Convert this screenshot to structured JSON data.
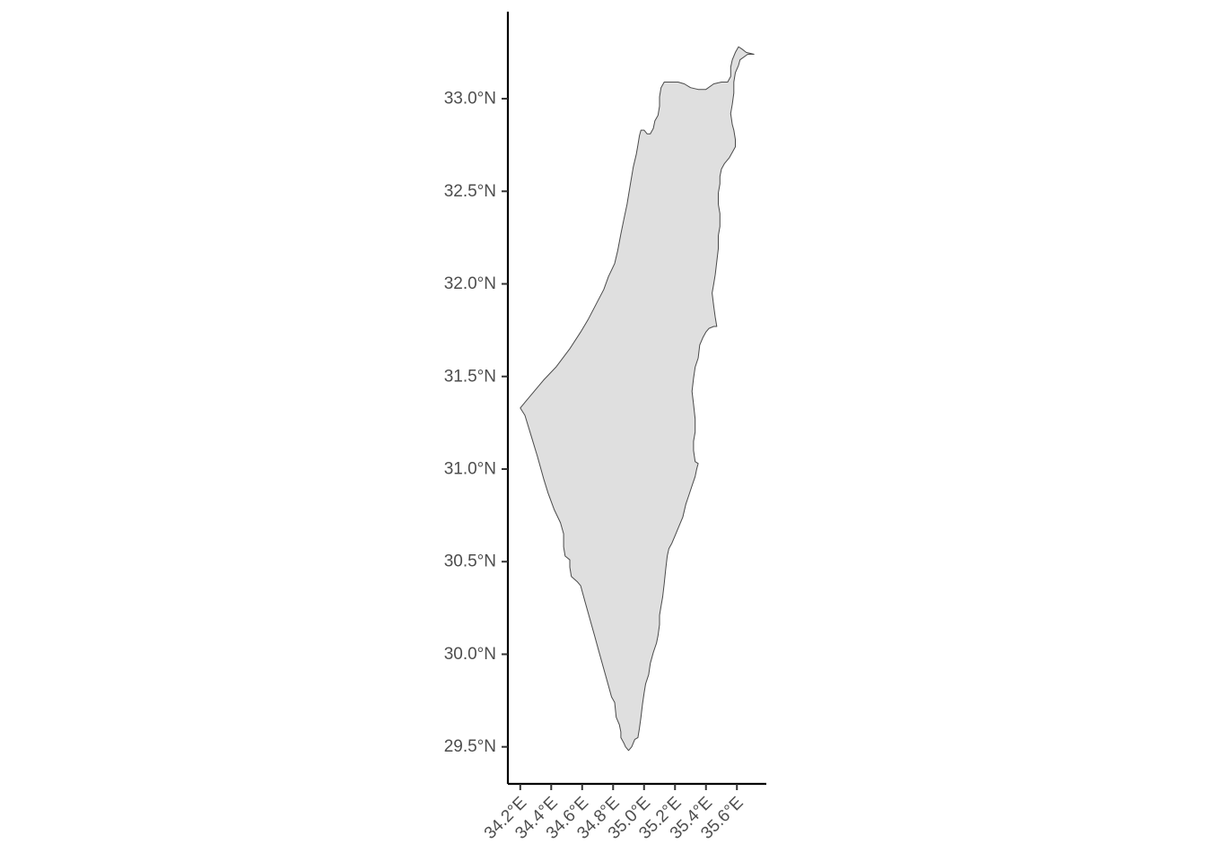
{
  "chart_data": {
    "type": "map",
    "projection": "geographic",
    "region_fill": "#dfdfdf",
    "region_stroke": "#4a4a4a",
    "axis_color": "#000000",
    "tick_label_color": "#4d4d4d",
    "xlim": [
      34.12,
      35.79
    ],
    "ylim": [
      29.3,
      33.47
    ],
    "x_ticks": [
      {
        "value": 34.2,
        "label": "34.2°E"
      },
      {
        "value": 34.4,
        "label": "34.4°E"
      },
      {
        "value": 34.6,
        "label": "34.6°E"
      },
      {
        "value": 34.8,
        "label": "34.8°E"
      },
      {
        "value": 35.0,
        "label": "35.0°E"
      },
      {
        "value": 35.2,
        "label": "35.2°E"
      },
      {
        "value": 35.4,
        "label": "35.4°E"
      },
      {
        "value": 35.6,
        "label": "35.6°E"
      }
    ],
    "y_ticks": [
      {
        "value": 33.0,
        "label": "33.0°N"
      },
      {
        "value": 32.5,
        "label": "32.5°N"
      },
      {
        "value": 32.0,
        "label": "32.0°N"
      },
      {
        "value": 31.5,
        "label": "31.5°N"
      },
      {
        "value": 31.0,
        "label": "31.0°N"
      },
      {
        "value": 30.5,
        "label": "30.5°N"
      },
      {
        "value": 30.0,
        "label": "30.0°N"
      },
      {
        "value": 29.5,
        "label": "29.5°N"
      }
    ],
    "grid": false,
    "outline_lonlat": [
      [
        34.2,
        31.33
      ],
      [
        34.23,
        31.29
      ],
      [
        34.27,
        31.18
      ],
      [
        34.31,
        31.07
      ],
      [
        34.35,
        30.95
      ],
      [
        34.38,
        30.87
      ],
      [
        34.42,
        30.78
      ],
      [
        34.46,
        30.71
      ],
      [
        34.48,
        30.65
      ],
      [
        34.48,
        30.58
      ],
      [
        34.49,
        30.53
      ],
      [
        34.52,
        30.51
      ],
      [
        34.52,
        30.47
      ],
      [
        34.53,
        30.42
      ],
      [
        34.57,
        30.39
      ],
      [
        34.59,
        30.37
      ],
      [
        34.62,
        30.28
      ],
      [
        34.65,
        30.19
      ],
      [
        34.68,
        30.1
      ],
      [
        34.71,
        30.01
      ],
      [
        34.74,
        29.92
      ],
      [
        34.77,
        29.83
      ],
      [
        34.79,
        29.77
      ],
      [
        34.81,
        29.74
      ],
      [
        34.82,
        29.66
      ],
      [
        34.84,
        29.62
      ],
      [
        34.85,
        29.58
      ],
      [
        34.85,
        29.55
      ],
      [
        34.87,
        29.52
      ],
      [
        34.88,
        29.5
      ],
      [
        34.9,
        29.48
      ],
      [
        34.91,
        29.49
      ],
      [
        34.92,
        29.5
      ],
      [
        34.94,
        29.54
      ],
      [
        34.96,
        29.55
      ],
      [
        34.97,
        29.6
      ],
      [
        34.98,
        29.66
      ],
      [
        34.99,
        29.73
      ],
      [
        35.0,
        29.79
      ],
      [
        35.01,
        29.84
      ],
      [
        35.03,
        29.89
      ],
      [
        35.04,
        29.95
      ],
      [
        35.06,
        30.01
      ],
      [
        35.08,
        30.06
      ],
      [
        35.09,
        30.1
      ],
      [
        35.1,
        30.16
      ],
      [
        35.1,
        30.21
      ],
      [
        35.11,
        30.26
      ],
      [
        35.12,
        30.31
      ],
      [
        35.13,
        30.38
      ],
      [
        35.14,
        30.46
      ],
      [
        35.15,
        30.53
      ],
      [
        35.16,
        30.57
      ],
      [
        35.18,
        30.6
      ],
      [
        35.2,
        30.64
      ],
      [
        35.22,
        30.68
      ],
      [
        35.25,
        30.74
      ],
      [
        35.27,
        30.81
      ],
      [
        35.29,
        30.86
      ],
      [
        35.31,
        30.91
      ],
      [
        35.33,
        30.96
      ],
      [
        35.34,
        31.0
      ],
      [
        35.35,
        31.03
      ],
      [
        35.33,
        31.04
      ],
      [
        35.32,
        31.1
      ],
      [
        35.32,
        31.15
      ],
      [
        35.33,
        31.2
      ],
      [
        35.33,
        31.27
      ],
      [
        35.32,
        31.35
      ],
      [
        35.31,
        31.42
      ],
      [
        35.32,
        31.49
      ],
      [
        35.33,
        31.55
      ],
      [
        35.35,
        31.6
      ],
      [
        35.36,
        31.67
      ],
      [
        35.38,
        31.71
      ],
      [
        35.4,
        31.74
      ],
      [
        35.42,
        31.76
      ],
      [
        35.45,
        31.77
      ],
      [
        35.47,
        31.77
      ],
      [
        35.46,
        31.82
      ],
      [
        35.45,
        31.88
      ],
      [
        35.44,
        31.95
      ],
      [
        35.45,
        32.0
      ],
      [
        35.46,
        32.05
      ],
      [
        35.47,
        32.12
      ],
      [
        35.48,
        32.19
      ],
      [
        35.48,
        32.26
      ],
      [
        35.49,
        32.31
      ],
      [
        35.49,
        32.38
      ],
      [
        35.48,
        32.43
      ],
      [
        35.48,
        32.49
      ],
      [
        35.49,
        32.54
      ],
      [
        35.49,
        32.58
      ],
      [
        35.5,
        32.62
      ],
      [
        35.52,
        32.65
      ],
      [
        35.55,
        32.68
      ],
      [
        35.57,
        32.71
      ],
      [
        35.59,
        32.74
      ],
      [
        35.59,
        32.78
      ],
      [
        35.58,
        32.83
      ],
      [
        35.57,
        32.86
      ],
      [
        35.56,
        32.92
      ],
      [
        35.57,
        32.97
      ],
      [
        35.58,
        33.03
      ],
      [
        35.58,
        33.09
      ],
      [
        35.59,
        33.14
      ],
      [
        35.61,
        33.18
      ],
      [
        35.62,
        33.21
      ],
      [
        35.67,
        33.24
      ],
      [
        35.71,
        33.24
      ],
      [
        35.66,
        33.25
      ],
      [
        35.63,
        33.27
      ],
      [
        35.61,
        33.28
      ],
      [
        35.59,
        33.25
      ],
      [
        35.57,
        33.21
      ],
      [
        35.56,
        33.17
      ],
      [
        35.56,
        33.12
      ],
      [
        35.54,
        33.09
      ],
      [
        35.5,
        33.09
      ],
      [
        35.45,
        33.08
      ],
      [
        35.4,
        33.05
      ],
      [
        35.35,
        33.05
      ],
      [
        35.3,
        33.06
      ],
      [
        35.26,
        33.08
      ],
      [
        35.22,
        33.09
      ],
      [
        35.17,
        33.09
      ],
      [
        35.13,
        33.09
      ],
      [
        35.11,
        33.06
      ],
      [
        35.1,
        33.01
      ],
      [
        35.1,
        32.96
      ],
      [
        35.09,
        32.91
      ],
      [
        35.07,
        32.88
      ],
      [
        35.06,
        32.84
      ],
      [
        35.04,
        32.81
      ],
      [
        35.02,
        32.81
      ],
      [
        35.0,
        32.83
      ],
      [
        34.98,
        32.83
      ],
      [
        34.97,
        32.8
      ],
      [
        34.96,
        32.75
      ],
      [
        34.95,
        32.7
      ],
      [
        34.93,
        32.63
      ],
      [
        34.91,
        32.53
      ],
      [
        34.89,
        32.43
      ],
      [
        34.87,
        32.35
      ],
      [
        34.85,
        32.27
      ],
      [
        34.83,
        32.18
      ],
      [
        34.81,
        32.11
      ],
      [
        34.77,
        32.04
      ],
      [
        34.74,
        31.97
      ],
      [
        34.69,
        31.89
      ],
      [
        34.64,
        31.81
      ],
      [
        34.59,
        31.74
      ],
      [
        34.52,
        31.65
      ],
      [
        34.43,
        31.55
      ],
      [
        34.35,
        31.48
      ],
      [
        34.29,
        31.42
      ],
      [
        34.24,
        31.37
      ],
      [
        34.2,
        31.33
      ]
    ]
  }
}
